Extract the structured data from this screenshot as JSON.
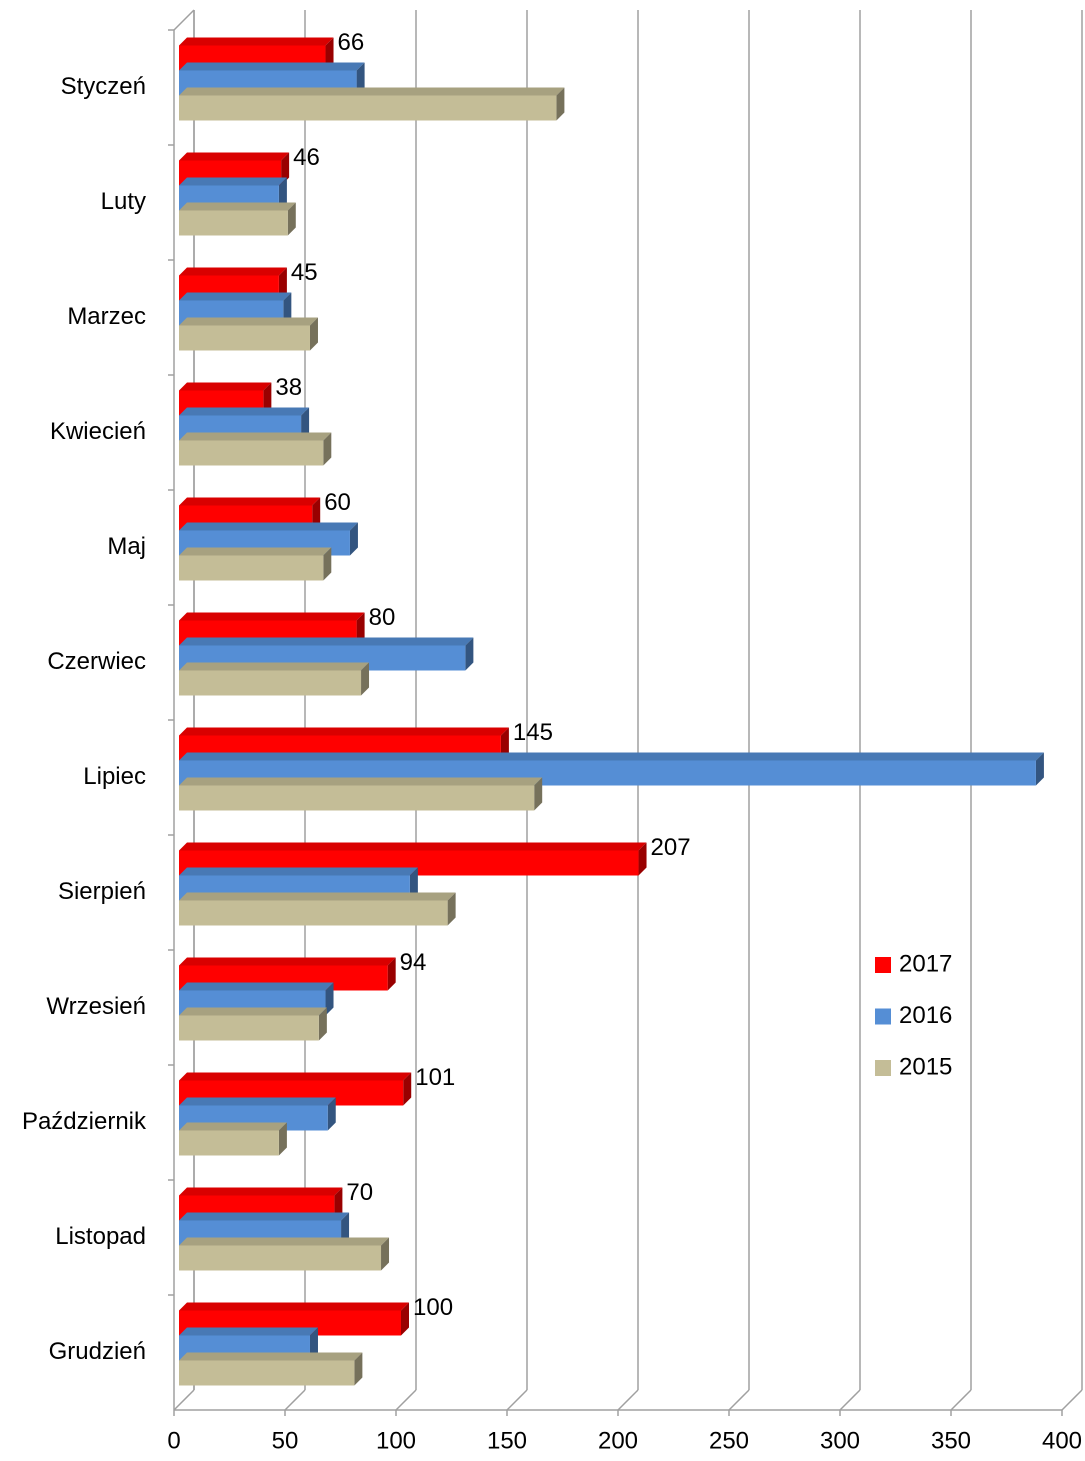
{
  "chart_data": {
    "type": "bar3d_horizontal",
    "categories": [
      "Styczeń",
      "Luty",
      "Marzec",
      "Kwiecień",
      "Maj",
      "Czerwiec",
      "Lipiec",
      "Sierpień",
      "Wrzesień",
      "Październik",
      "Listopad",
      "Grudzień"
    ],
    "series": [
      {
        "name": "2017",
        "color": "#ff0000",
        "values": [
          66,
          46,
          45,
          38,
          60,
          80,
          145,
          207,
          94,
          101,
          70,
          100
        ]
      },
      {
        "name": "2016",
        "color": "#558ed5",
        "values": [
          80,
          45,
          47,
          55,
          77,
          129,
          386,
          104,
          66,
          67,
          73,
          59
        ]
      },
      {
        "name": "2015",
        "color": "#c4bd97",
        "values": [
          170,
          49,
          59,
          65,
          65,
          82,
          160,
          121,
          63,
          45,
          91,
          79
        ]
      }
    ],
    "xlim": [
      0,
      400
    ],
    "xticks": [
      0,
      50,
      100,
      150,
      200,
      250,
      300,
      350,
      400
    ],
    "grid": true,
    "legend": "right"
  }
}
